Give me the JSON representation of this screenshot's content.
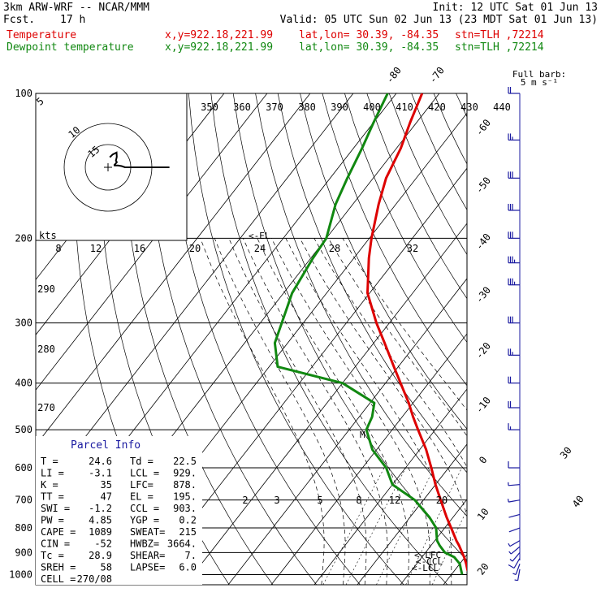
{
  "header": {
    "model": "3km ARW-WRF -- NCAR/MMM",
    "init": "Init: 12 UTC Sat 01 Jun 13",
    "fcst_label": "Fcst.",
    "fcst_value": "17 h",
    "valid": "Valid: 05 UTC Sun 02 Jun 13 (23 MDT Sat 01 Jun 13)",
    "temp_label": "Temperature",
    "dew_label": "Dewpoint temperature",
    "xy": "x,y=922.18,221.99",
    "latlon": "lat,lon= 30.39, -84.35",
    "stn": "stn=TLH ,72214"
  },
  "barb_legend": {
    "line1": "Full barb:",
    "line2": "5 m s⁻¹"
  },
  "parcel_info": {
    "title": "Parcel Info",
    "rows": [
      [
        "T  =",
        "24.6",
        "Td =",
        "22.5"
      ],
      [
        "LI =",
        "-3.1",
        "LCL =",
        "929."
      ],
      [
        "K  =",
        "35",
        "LFC=",
        "878."
      ],
      [
        "TT =",
        "47",
        "EL =",
        "195."
      ],
      [
        "SWI =",
        "-1.2",
        "CCL =",
        "903."
      ],
      [
        "PW =",
        "4.85",
        "YGP =",
        "0.2"
      ],
      [
        "CAPE =",
        "1089",
        "SWEAT=",
        "215"
      ],
      [
        "CIN =",
        "-52",
        "HWBZ=",
        "3664."
      ],
      [
        "Tc =",
        "28.9",
        "SHEAR=",
        "7."
      ],
      [
        "SREH =",
        "58",
        "LAPSE=",
        "6.0"
      ],
      [
        "CELL =",
        "270/08",
        "",
        ""
      ]
    ]
  },
  "level_labels": {
    "el": "<-EL",
    "lfc": "<-LFC",
    "ccl": "<-CCL",
    "lcl": "<-LCL",
    "m": "M"
  },
  "colors": {
    "temperature": "#dd0000",
    "dewpoint": "#118811",
    "barbs": "#1a1aa0",
    "info": "#1a1aa0"
  },
  "chart_data": {
    "type": "line",
    "ylabel": "",
    "xlabel": "",
    "pressure_levels": [
      100,
      200,
      300,
      400,
      500,
      600,
      700,
      800,
      900,
      1000
    ],
    "temperature_isotherm_labels": [
      "-80",
      "-70",
      "-60",
      "-50",
      "-40",
      "-30",
      "-20",
      "-10",
      "0",
      "10",
      "20",
      "30",
      "40"
    ],
    "theta_labels": [
      "350",
      "360",
      "370",
      "380",
      "390",
      "400",
      "410",
      "420",
      "430",
      "440"
    ],
    "theta_left_labels": [
      "290",
      "280",
      "270"
    ],
    "mixing_ratio_labels": [
      "2",
      "3",
      "5",
      "8",
      "12",
      "20"
    ],
    "hodograph": {
      "speed_ring_labels": [
        "8",
        "12",
        "16",
        "20",
        "24",
        "28",
        "32"
      ],
      "unit": "kts",
      "dir_labels": [
        "5",
        "10",
        "15"
      ]
    },
    "series": [
      {
        "name": "Temperature",
        "p": [
          1000,
          980,
          950,
          920,
          900,
          870,
          850,
          800,
          760,
          700,
          650,
          600,
          550,
          500,
          470,
          440,
          400,
          370,
          330,
          300,
          260,
          220,
          200,
          170,
          150,
          130,
          115,
          100
        ],
        "t": [
          24.6,
          23.0,
          21.5,
          19.8,
          18.5,
          16.5,
          15.0,
          11.5,
          8.5,
          4.0,
          0.0,
          -4.0,
          -8.5,
          -14.0,
          -17.5,
          -21.0,
          -26.5,
          -31.0,
          -37.5,
          -43.0,
          -50.5,
          -56.5,
          -59.5,
          -64.0,
          -67.0,
          -69.0,
          -71.5,
          -74.0
        ]
      },
      {
        "name": "Dewpoint temperature",
        "p": [
          1000,
          980,
          950,
          920,
          900,
          870,
          850,
          800,
          760,
          700,
          650,
          600,
          550,
          500,
          470,
          440,
          400,
          370,
          330,
          300,
          260,
          220,
          200,
          170,
          150,
          130,
          115,
          100
        ],
        "t": [
          22.5,
          21.5,
          20.0,
          17.5,
          14.5,
          12.0,
          10.5,
          8.0,
          4.5,
          -2.0,
          -10.0,
          -14.5,
          -21.0,
          -26.0,
          -27.0,
          -29.0,
          -40.0,
          -58.0,
          -63.0,
          -65.0,
          -68.0,
          -69.5,
          -70.0,
          -74.0,
          -76.0,
          -78.0,
          -80.0,
          -82.0
        ]
      }
    ],
    "wind_barbs_ms": {
      "p": [
        975,
        950,
        925,
        900,
        875,
        850,
        800,
        750,
        700,
        650,
        600,
        500,
        450,
        400,
        350,
        300,
        250,
        225,
        200,
        175,
        150,
        125,
        100
      ],
      "dir": [
        190,
        200,
        210,
        220,
        230,
        240,
        250,
        255,
        260,
        265,
        270,
        270,
        270,
        270,
        270,
        270,
        270,
        270,
        270,
        270,
        270,
        270,
        270
      ],
      "spd": [
        3,
        4,
        5,
        4,
        3,
        3,
        2,
        2,
        3,
        4,
        5,
        8,
        10,
        12,
        14,
        16,
        18,
        18,
        17,
        16,
        15,
        13,
        10
      ]
    }
  }
}
